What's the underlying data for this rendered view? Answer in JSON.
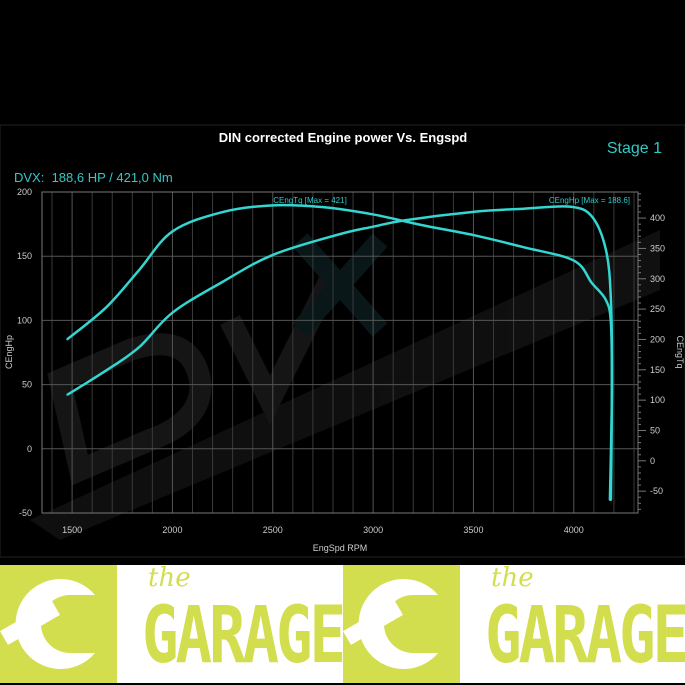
{
  "chart_data": {
    "type": "line",
    "title": "DIN corrected Engine power Vs. Engspd",
    "subtitle": "DVX:  188,6 HP / 421,0 Nm",
    "stage_label": "Stage 1",
    "xlabel": "EngSpd RPM",
    "ylabel_left": "CEngHp",
    "ylabel_right": "CEngTq",
    "xlim": [
      1350,
      4320
    ],
    "ylim_left": [
      -50,
      200
    ],
    "ylim_right": [
      -86,
      443
    ],
    "x_ticks": [
      1500,
      2000,
      2500,
      3000,
      3500,
      4000
    ],
    "y_ticks_left": [
      -50,
      0,
      50,
      100,
      150,
      200
    ],
    "y_ticks_right": [
      -50,
      0,
      50,
      100,
      150,
      200,
      250,
      300,
      350,
      400
    ],
    "grid": true,
    "series": [
      {
        "name": "CEngHp",
        "axis": "left",
        "annotation": "CEngHp [Max = 188.6]",
        "color": "#33d6d0",
        "x": [
          1475,
          1670,
          1833,
          2000,
          2250,
          2500,
          2830,
          3000,
          3160,
          3500,
          3750,
          3980,
          4090,
          4160,
          4185,
          4190,
          4180
        ],
        "y": [
          42,
          61,
          79,
          106,
          130,
          151,
          167,
          173,
          178,
          184.5,
          187,
          188.6,
          181,
          155,
          116,
          46,
          -40
        ]
      },
      {
        "name": "CEngTq",
        "axis": "right",
        "annotation": "CEngTq [Max = 421]",
        "color": "#33d6d0",
        "x": [
          1475,
          1670,
          1833,
          2000,
          2250,
          2500,
          2750,
          3000,
          3250,
          3500,
          3750,
          4000,
          4090,
          4160,
          4185,
          4190,
          4185
        ],
        "y": [
          200,
          253,
          314,
          378,
          410,
          421,
          418,
          406,
          388,
          372,
          352,
          330,
          293,
          265,
          227,
          116,
          -65
        ]
      }
    ]
  },
  "watermark": "DVX PERFORMANCE",
  "logo": {
    "small": "the",
    "big": "GARAGE",
    "color": "#d3de4e"
  }
}
